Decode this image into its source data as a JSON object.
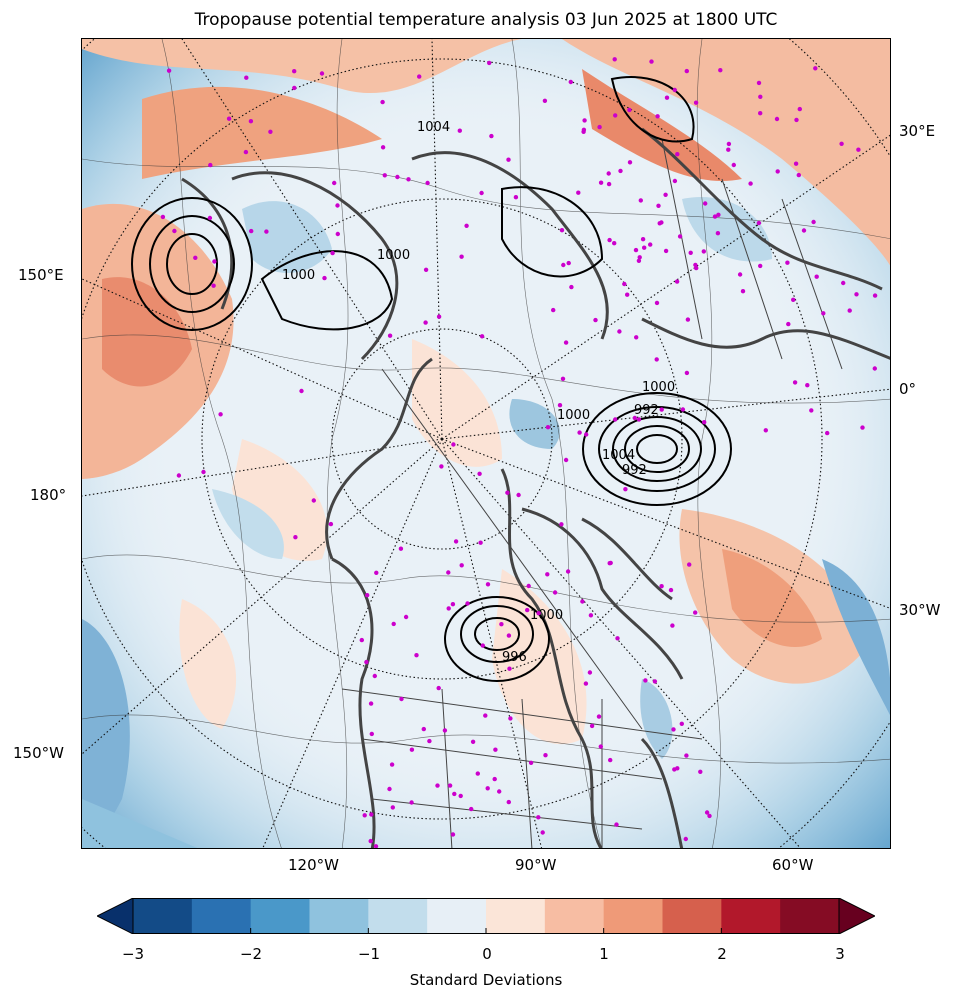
{
  "title": "Tropopause potential temperature analysis 03 Jun 2025 at 1800 UTC",
  "map": {
    "projection": "north polar stereographic",
    "longitude_labels": {
      "lon_30e": "30°E",
      "lon_150e": "150°E",
      "lon_0": "0°",
      "lon_180": "180°",
      "lon_30w": "30°W",
      "lon_150w": "150°W",
      "lon_120w": "120°W",
      "lon_90w": "90°W",
      "lon_60w": "60°W"
    },
    "contour_labels": [
      "1004",
      "1000",
      "1000",
      "1000",
      "1000",
      "992",
      "1004",
      "992",
      "1000",
      "996"
    ],
    "colors": {
      "station_markers": "#cc00cc",
      "coastlines": "#444444",
      "pressure_contours": "#000000"
    }
  },
  "colorbar": {
    "label": "Standard Deviations",
    "ticks": [
      "−3",
      "−2",
      "−1",
      "0",
      "1",
      "2",
      "3"
    ],
    "colors": [
      "#08306b",
      "#134b87",
      "#2a71b2",
      "#4a98c9",
      "#8fc2de",
      "#c2ddec",
      "#e7eff6",
      "#fbe5d8",
      "#f7bda3",
      "#ef9a78",
      "#d6604d",
      "#b2182b",
      "#850c24",
      "#67001f"
    ],
    "range": [
      -3,
      3
    ]
  }
}
